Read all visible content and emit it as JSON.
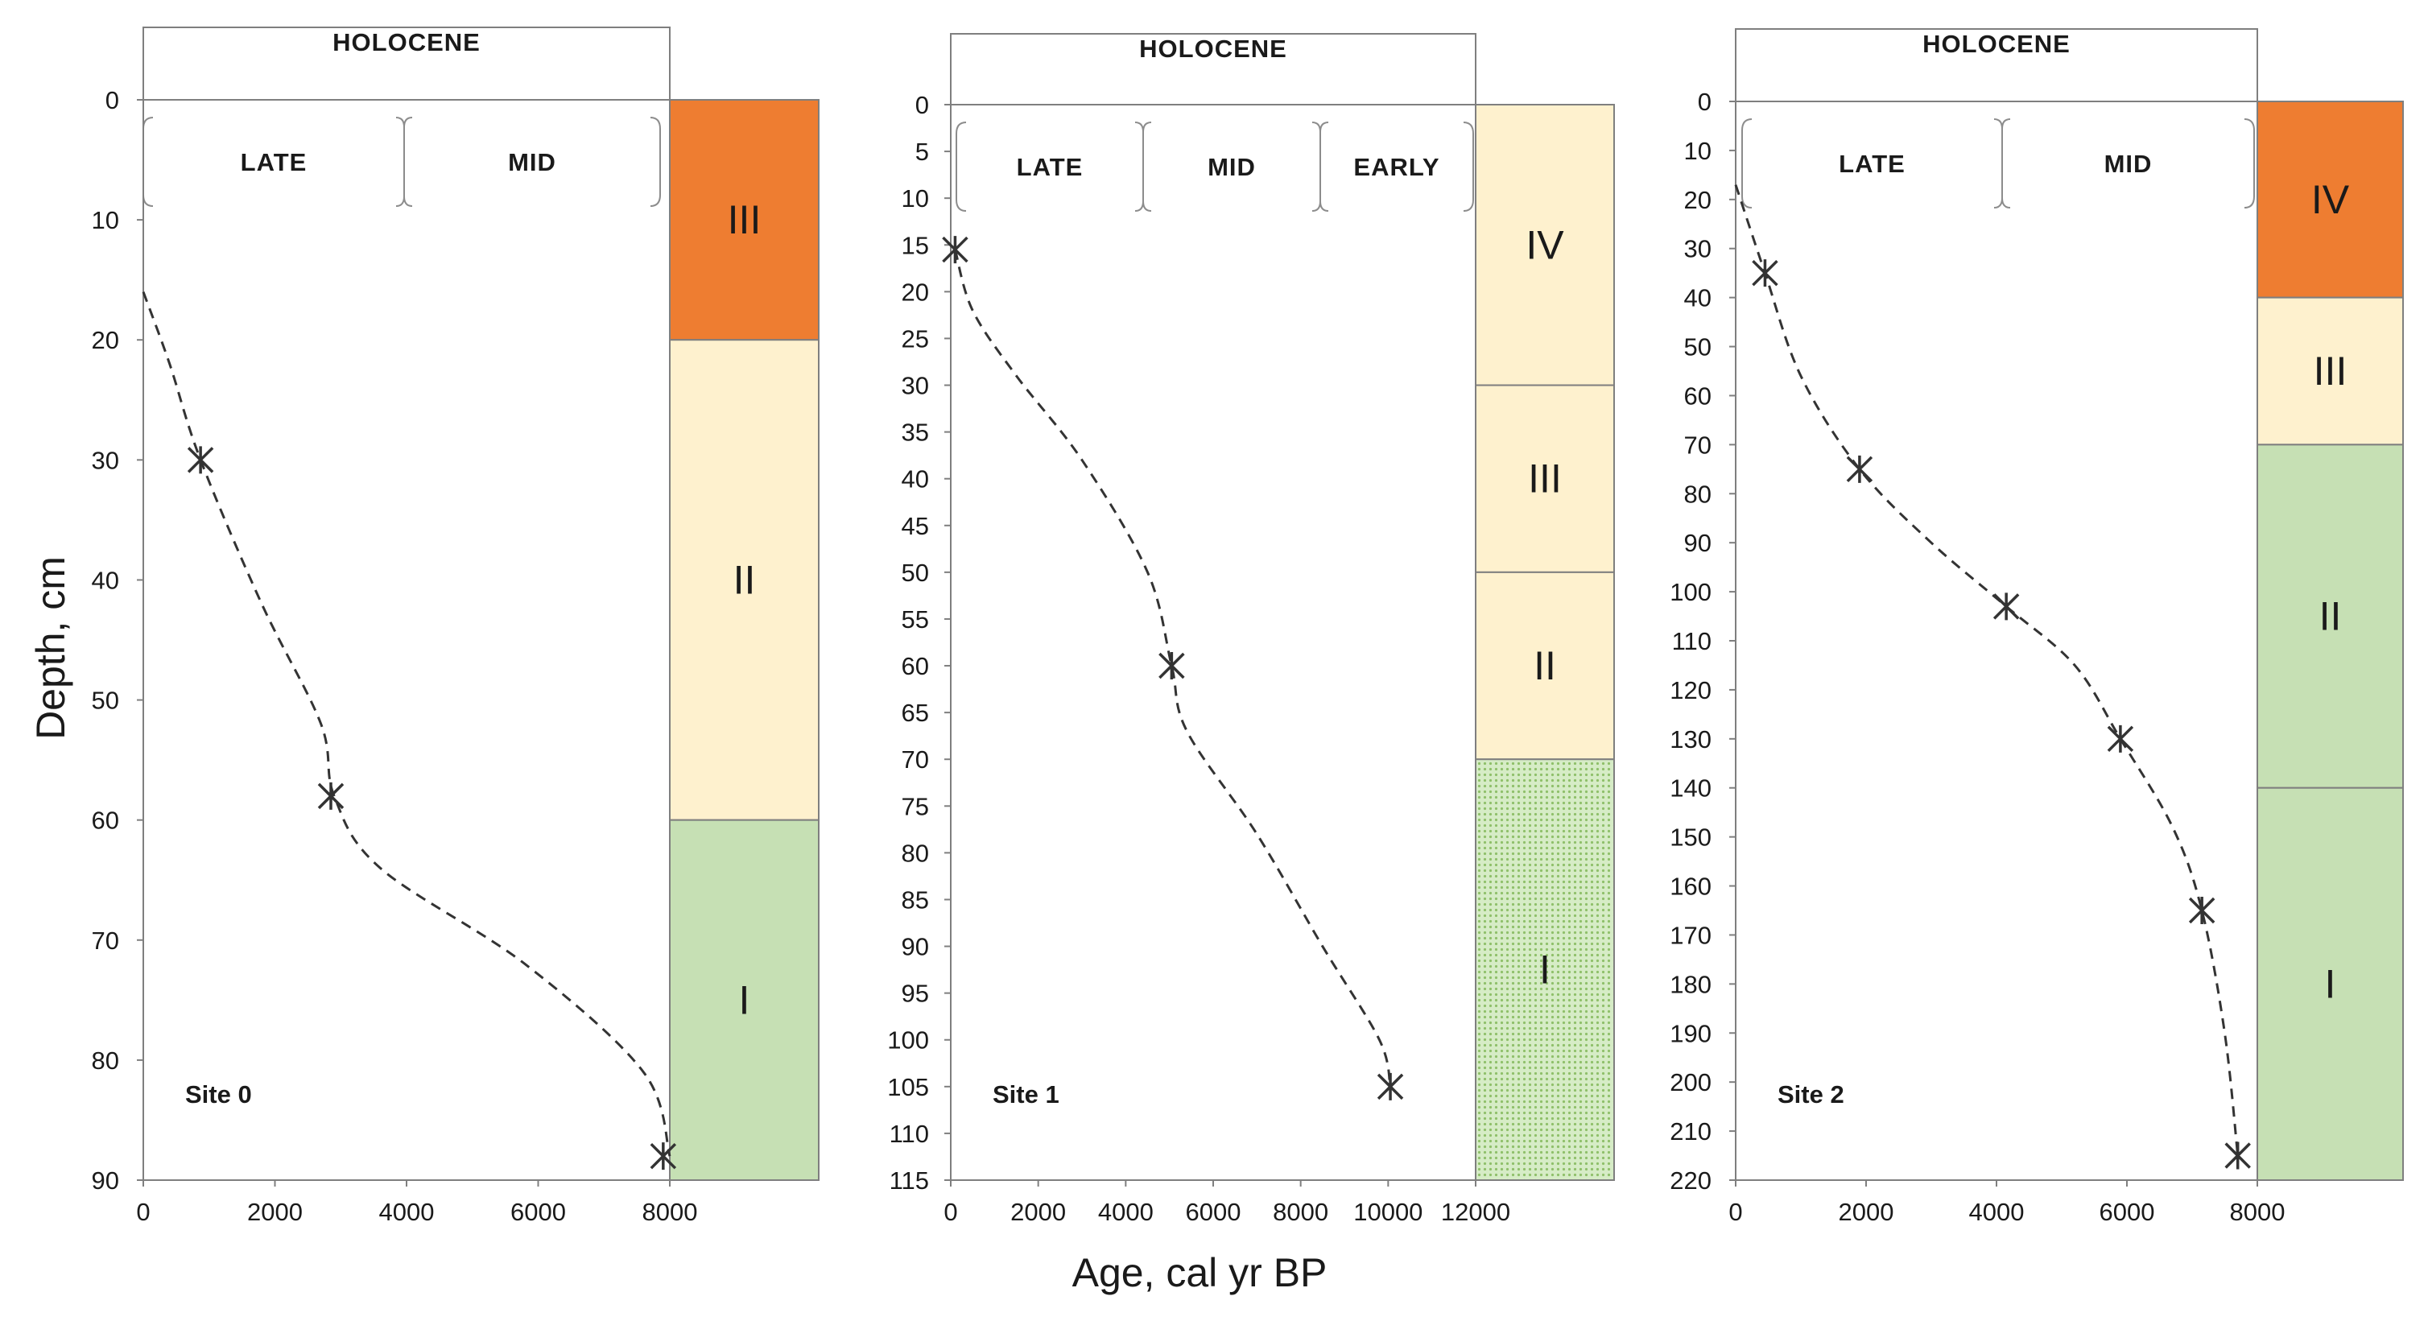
{
  "figure": {
    "ylabel": "Depth, cm",
    "xlabel": "Age, cal yr BP"
  },
  "chart_data": [
    {
      "type": "line",
      "title": "Site 0",
      "epoch": "HOLOCENE",
      "periods": [
        "LATE",
        "MID"
      ],
      "xlabel": "Age, cal yr BP",
      "ylabel": "Depth, cm",
      "xlim": [
        0,
        8000
      ],
      "xticks": [
        "0",
        "2000",
        "4000",
        "6000",
        "8000"
      ],
      "ylim": [
        0,
        90
      ],
      "yticks": [
        "0",
        "10",
        "20",
        "30",
        "40",
        "50",
        "60",
        "70",
        "80",
        "90"
      ],
      "series": [
        {
          "name": "age-depth model",
          "style": "dashed",
          "x": [
            0,
            400,
            870,
            1800,
            2700,
            2900,
            3600,
            5800,
            7600,
            8000
          ],
          "y": [
            16,
            22,
            30,
            42,
            52,
            58,
            64,
            72,
            81,
            88
          ]
        }
      ],
      "dates": {
        "x": [
          870,
          2850,
          7900
        ],
        "y": [
          30,
          58,
          88
        ]
      },
      "zones": [
        {
          "label": "III",
          "top": 0,
          "bottom": 20,
          "color": "#EE7D31",
          "pattern": false
        },
        {
          "label": "II",
          "top": 20,
          "bottom": 60,
          "color": "#FEF1CE",
          "pattern": false
        },
        {
          "label": "I",
          "top": 60,
          "bottom": 90,
          "color": "#C6E0B4",
          "pattern": false
        }
      ]
    },
    {
      "type": "line",
      "title": "Site 1",
      "epoch": "HOLOCENE",
      "periods": [
        "LATE",
        "MID",
        "EARLY"
      ],
      "xlabel": "Age, cal yr BP",
      "ylabel": "Depth, cm",
      "xlim": [
        0,
        12000
      ],
      "xticks": [
        "0",
        "2000",
        "4000",
        "6000",
        "8000",
        "10000",
        "12000"
      ],
      "ylim": [
        0,
        115
      ],
      "yticks": [
        "0",
        "5",
        "10",
        "15",
        "20",
        "25",
        "30",
        "35",
        "40",
        "45",
        "50",
        "55",
        "60",
        "65",
        "70",
        "75",
        "80",
        "85",
        "90",
        "95",
        "100",
        "105",
        "110",
        "115"
      ],
      "series": [
        {
          "name": "age-depth model",
          "style": "dashed",
          "x": [
            100,
            500,
            1500,
            3000,
            4500,
            5050,
            5400,
            7000,
            8500,
            9800,
            10050
          ],
          "y": [
            15.5,
            22,
            29,
            38,
            50,
            60,
            67,
            78,
            90,
            100,
            105
          ]
        }
      ],
      "dates": {
        "x": [
          100,
          5050,
          10050
        ],
        "y": [
          15.5,
          60,
          105
        ]
      },
      "zones": [
        {
          "label": "IV",
          "top": 0,
          "bottom": 30,
          "color": "#FEF1CE",
          "pattern": false
        },
        {
          "label": "III",
          "top": 30,
          "bottom": 50,
          "color": "#FEF1CE",
          "pattern": false
        },
        {
          "label": "II",
          "top": 50,
          "bottom": 70,
          "color": "#FEF1CE",
          "pattern": false
        },
        {
          "label": "I",
          "top": 70,
          "bottom": 115,
          "color": "#C6E0B4",
          "pattern": true
        }
      ]
    },
    {
      "type": "line",
      "title": "Site 2",
      "epoch": "HOLOCENE",
      "periods": [
        "LATE",
        "MID"
      ],
      "xlabel": "Age, cal yr BP",
      "ylabel": "Depth, cm",
      "xlim": [
        0,
        8000
      ],
      "xticks": [
        "0",
        "2000",
        "4000",
        "6000",
        "8000"
      ],
      "ylim": [
        0,
        220
      ],
      "yticks": [
        "0",
        "10",
        "20",
        "30",
        "40",
        "50",
        "60",
        "70",
        "80",
        "90",
        "100",
        "110",
        "120",
        "130",
        "140",
        "150",
        "160",
        "170",
        "180",
        "190",
        "200",
        "210",
        "220"
      ],
      "series": [
        {
          "name": "age-depth model",
          "style": "dashed",
          "x": [
            0,
            450,
            1000,
            1900,
            3000,
            4150,
            5200,
            5900,
            6700,
            7150,
            7500,
            7700
          ],
          "y": [
            17,
            35,
            56,
            75,
            90,
            103,
            115,
            130,
            148,
            165,
            190,
            215
          ]
        }
      ],
      "dates": {
        "x": [
          450,
          1900,
          4150,
          5900,
          7150,
          7700
        ],
        "y": [
          35,
          75,
          103,
          130,
          165,
          215
        ]
      },
      "zones": [
        {
          "label": "IV",
          "top": 0,
          "bottom": 40,
          "color": "#EE7D31",
          "pattern": false
        },
        {
          "label": "III",
          "top": 40,
          "bottom": 70,
          "color": "#FEF1CE",
          "pattern": false
        },
        {
          "label": "II",
          "top": 70,
          "bottom": 140,
          "color": "#C6E0B4",
          "pattern": false
        },
        {
          "label": "I",
          "top": 140,
          "bottom": 220,
          "color": "#C6E0B4",
          "pattern": false
        }
      ]
    }
  ]
}
